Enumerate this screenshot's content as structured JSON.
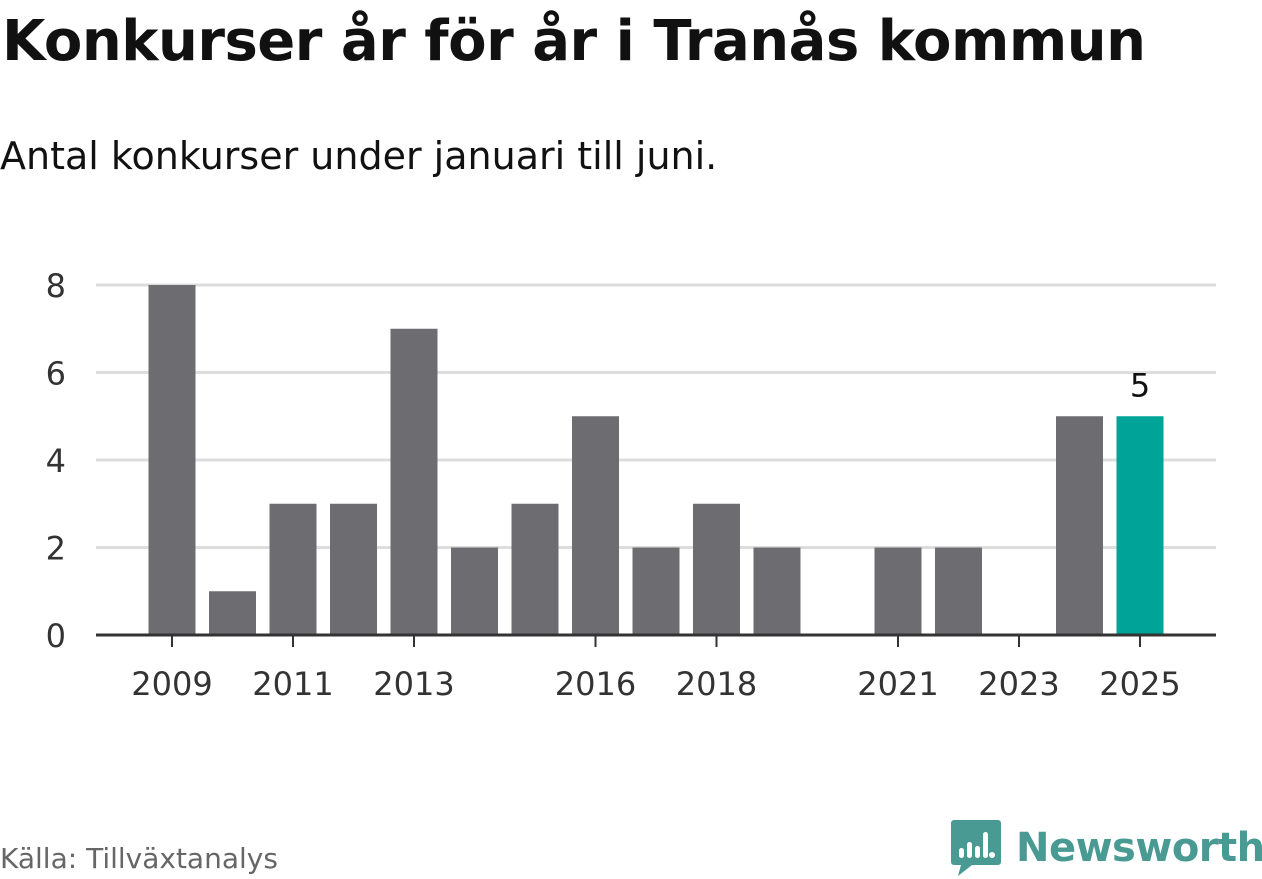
{
  "title": "Konkurser år för år i Tranås kommun",
  "subtitle": "Antal konkurser under januari till juni.",
  "source": "Källa: Tillväxtanalys",
  "brand": {
    "name": "Newsworthy",
    "logo_icon": "bar-chart-speech-bubble-icon",
    "color": "#4a9a94"
  },
  "colors": {
    "bar": "#6d6c71",
    "highlight": "#00a398",
    "grid": "#dddddd",
    "axis": "#333333"
  },
  "chart_data": {
    "type": "bar",
    "title": "Konkurser år för år i Tranås kommun",
    "subtitle": "Antal konkurser under januari till juni.",
    "categories": [
      "2009",
      "2010",
      "2011",
      "2012",
      "2013",
      "2014",
      "2015",
      "2016",
      "2017",
      "2018",
      "2019",
      "2020",
      "2021",
      "2022",
      "2023",
      "2024",
      "2025"
    ],
    "values": [
      8,
      1,
      3,
      3,
      7,
      2,
      3,
      5,
      2,
      3,
      2,
      0,
      2,
      2,
      0,
      5,
      5
    ],
    "x_tick_labels": [
      "2009",
      "2011",
      "2013",
      "2016",
      "2018",
      "2021",
      "2023",
      "2025"
    ],
    "y_ticks": [
      0,
      2,
      4,
      6,
      8
    ],
    "ylim": [
      0,
      8
    ],
    "grid": true,
    "highlight_category": "2025",
    "data_labels": [
      {
        "category": "2025",
        "label": "5"
      }
    ]
  }
}
